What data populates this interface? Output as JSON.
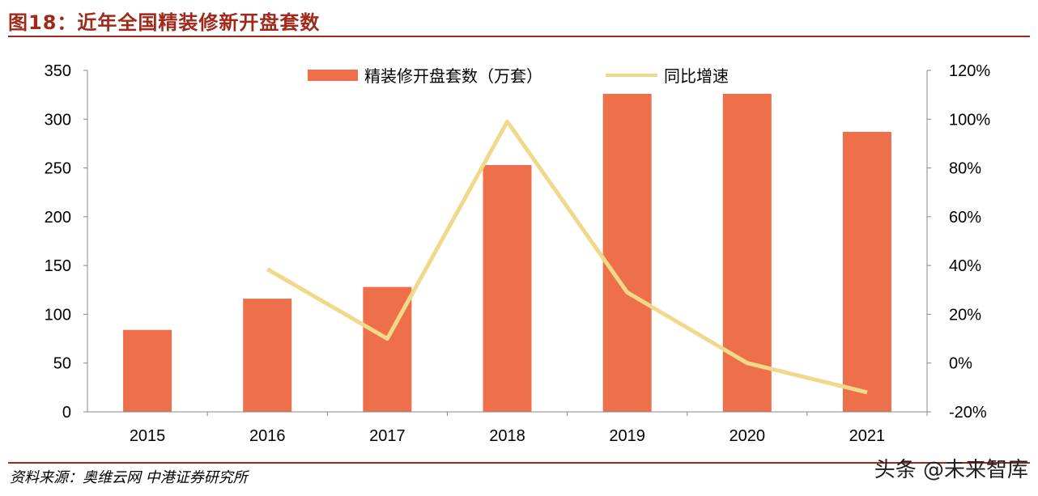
{
  "header": {
    "title": "图18：近年全国精装修新开盘套数"
  },
  "footer": {
    "source": "资料来源：奥维云网 中港证券研究所",
    "watermark": "头条 @未来智库"
  },
  "colors": {
    "bar": "#ed704a",
    "line": "#f0d98a",
    "title": "#a0291a"
  },
  "chart_data": {
    "type": "bar+line",
    "categories": [
      "2015",
      "2016",
      "2017",
      "2018",
      "2019",
      "2020",
      "2021"
    ],
    "series": [
      {
        "name": "精装修开盘套数（万套）",
        "type": "bar",
        "axis": "left",
        "values": [
          84,
          116,
          128,
          253,
          326,
          326,
          287
        ]
      },
      {
        "name": "同比增速",
        "type": "line",
        "axis": "right",
        "values": [
          null,
          38.5,
          10,
          99,
          29,
          0,
          -12
        ]
      }
    ],
    "left_axis": {
      "ylim": [
        0,
        350
      ],
      "ticks": [
        "0",
        "50",
        "100",
        "150",
        "200",
        "250",
        "300",
        "350"
      ]
    },
    "right_axis": {
      "ylim": [
        -20,
        120
      ],
      "ticks": [
        "-20%",
        "0%",
        "20%",
        "40%",
        "60%",
        "80%",
        "100%",
        "120%"
      ]
    },
    "legend": "top-center",
    "grid": false
  }
}
